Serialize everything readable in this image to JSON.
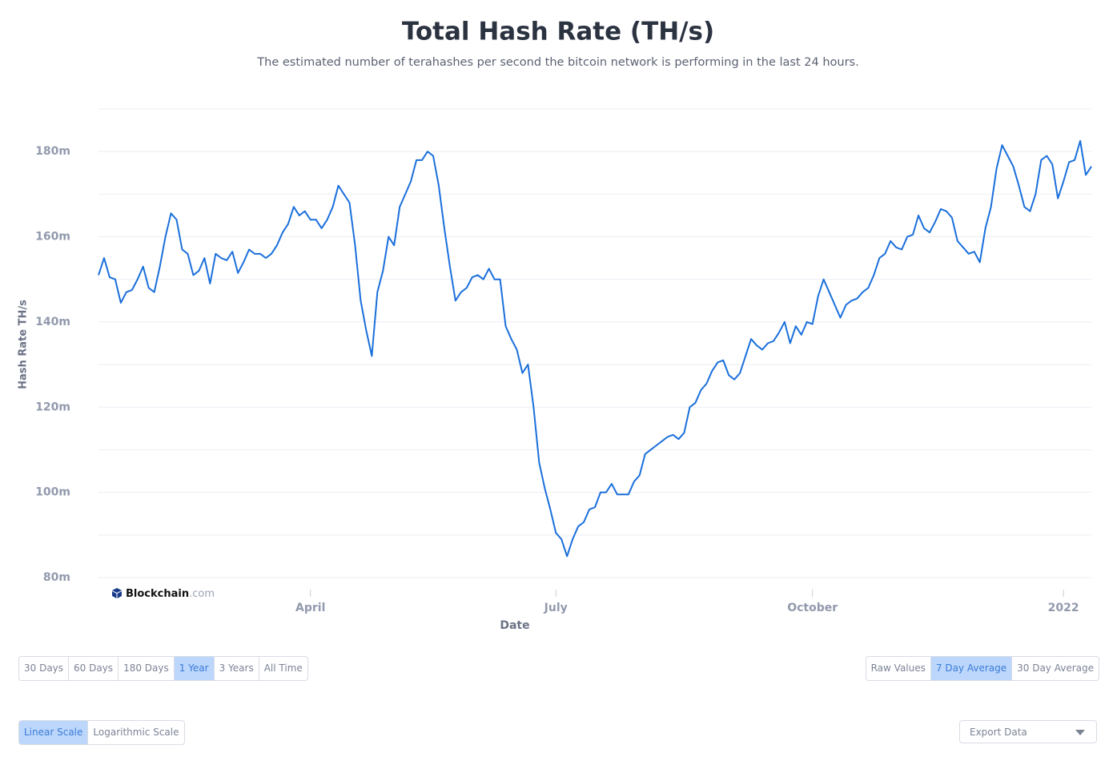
{
  "chart_data": {
    "type": "line",
    "title": "Total Hash Rate (TH/s)",
    "subtitle": "The estimated number of terahashes per second the bitcoin network is performing in the last 24 hours.",
    "y_label": "Hash Rate TH/s",
    "x_label": "Date",
    "watermark": {
      "name": "Blockchain",
      "suffix": ".com"
    },
    "ylim": [
      80,
      190
    ],
    "yticks": [
      {
        "value": 80,
        "label": "80m"
      },
      {
        "value": 100,
        "label": "100m"
      },
      {
        "value": 120,
        "label": "120m"
      },
      {
        "value": 140,
        "label": "140m"
      },
      {
        "value": 160,
        "label": "160m"
      },
      {
        "value": 180,
        "label": "180m"
      }
    ],
    "minor_yticks": [
      90,
      110,
      130,
      150,
      170,
      190
    ],
    "grid": true,
    "categories": [
      null,
      null,
      null,
      null,
      null,
      null,
      null,
      null,
      null,
      null,
      null,
      null,
      null,
      null,
      null,
      null,
      null,
      null,
      null,
      null,
      null,
      null,
      null,
      null,
      null,
      null,
      null,
      null,
      null,
      null,
      null,
      null,
      null,
      null,
      null,
      null,
      null,
      null,
      "April",
      null,
      null,
      null,
      null,
      null,
      null,
      null,
      null,
      null,
      null,
      null,
      null,
      null,
      null,
      null,
      null,
      null,
      null,
      null,
      null,
      null,
      null,
      null,
      null,
      null,
      null,
      null,
      null,
      null,
      null,
      null,
      null,
      null,
      null,
      null,
      null,
      null,
      null,
      null,
      null,
      null,
      null,
      null,
      "July",
      null,
      null,
      null,
      null,
      null,
      null,
      null,
      null,
      null,
      null,
      null,
      null,
      null,
      null,
      null,
      null,
      null,
      null,
      null,
      null,
      null,
      null,
      null,
      null,
      null,
      null,
      null,
      null,
      null,
      null,
      null,
      null,
      null,
      null,
      null,
      null,
      null,
      null,
      null,
      null,
      null,
      null,
      null,
      null,
      null,
      "October",
      null,
      null,
      null,
      null,
      null,
      null,
      null,
      null,
      null,
      null,
      null,
      null,
      null,
      null,
      null,
      null,
      null,
      null,
      null,
      null,
      null,
      null,
      null,
      null,
      null,
      null,
      null,
      null,
      null,
      null,
      null,
      null,
      null,
      null,
      null,
      null,
      null,
      null,
      null,
      null,
      null,
      null,
      null,
      null,
      "2022",
      null,
      null,
      null,
      null,
      null
    ],
    "series": [
      {
        "name": "Hash Rate",
        "color": "#1a6fdb",
        "values": [
          151,
          155,
          150.5,
          150,
          144.5,
          147,
          147.5,
          150,
          153,
          148,
          147,
          153,
          160,
          165.5,
          164,
          157,
          156,
          151,
          152,
          155,
          149,
          156,
          155,
          154.5,
          156.5,
          151.5,
          154,
          157,
          156,
          156,
          155,
          156,
          158,
          161,
          163,
          167,
          165,
          166,
          164,
          164,
          162,
          164,
          167,
          172,
          170,
          168,
          158,
          145,
          138,
          132,
          147,
          152,
          160,
          158,
          167,
          170,
          173,
          178,
          178,
          180,
          179,
          172,
          162,
          153,
          145,
          147,
          148,
          150.5,
          151,
          150,
          152.5,
          150,
          150,
          139,
          136,
          133.5,
          128,
          130,
          120,
          107,
          101,
          96,
          90.5,
          89,
          85,
          89,
          92,
          93,
          96,
          96.5,
          100,
          100,
          102,
          99.5,
          99.5,
          99.5,
          102.5,
          104,
          109,
          110,
          111,
          112,
          113,
          113.5,
          112.5,
          114,
          120,
          121,
          124,
          125.5,
          128.5,
          130.5,
          131,
          127.5,
          126.5,
          128,
          132,
          136,
          134.5,
          133.5,
          135,
          135.5,
          137.5,
          140,
          135,
          139,
          137,
          140,
          139.5,
          146,
          150,
          147,
          144,
          141,
          144,
          145,
          145.5,
          147,
          148,
          151,
          155,
          156,
          159,
          157.5,
          157,
          160,
          160.5,
          165,
          162,
          161,
          163.5,
          166.5,
          166,
          164.5,
          159,
          157.5,
          156,
          156.5,
          154,
          162,
          167,
          176,
          181.5,
          179,
          176.5,
          172,
          167,
          166,
          170,
          178,
          179,
          177,
          169,
          173,
          177.5,
          178,
          182.5,
          174.5,
          176.5
        ]
      }
    ]
  },
  "controls": {
    "range": {
      "options": [
        "30 Days",
        "60 Days",
        "180 Days",
        "1 Year",
        "3 Years",
        "All Time"
      ],
      "selected": 3
    },
    "average": {
      "options": [
        "Raw Values",
        "7 Day Average",
        "30 Day Average"
      ],
      "selected": 1
    },
    "scale": {
      "options": [
        "Linear Scale",
        "Logarithmic Scale"
      ],
      "selected": 0
    },
    "export": "Export Data"
  }
}
